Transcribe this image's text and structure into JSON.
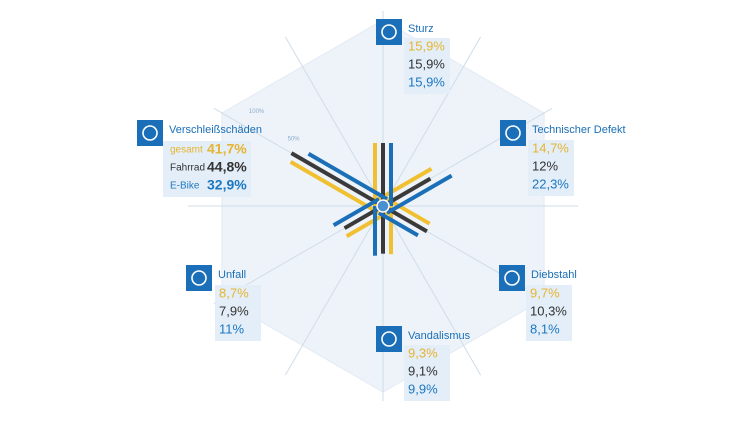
{
  "chart_data": {
    "type": "radial-bar",
    "categories": [
      "Sturz",
      "Technischer Defekt",
      "Diebstahl",
      "Vandalismus",
      "Unfall",
      "Verschleißschäden"
    ],
    "series": [
      {
        "name": "gesamt",
        "color": "#f0c030",
        "values": [
          15.9,
          14.7,
          9.7,
          9.3,
          8.7,
          41.7
        ],
        "value_labels": [
          "15,9%",
          "14,7%",
          "9,7%",
          "9,3%",
          "8,7%",
          "41,7%"
        ]
      },
      {
        "name": "Fahrrad",
        "color": "#3a3a3a",
        "values": [
          15.9,
          12,
          10.3,
          9.1,
          7.9,
          44.8
        ],
        "value_labels": [
          "15,9%",
          "12%",
          "10,3%",
          "9,1%",
          "7,9%",
          "44,8%"
        ]
      },
      {
        "name": "E-Bike",
        "color": "#1a6fb8",
        "values": [
          15.9,
          22.3,
          8.1,
          9.9,
          11,
          32.9
        ],
        "value_labels": [
          "15,9%",
          "22,3%",
          "8,1%",
          "9,9%",
          "11%",
          "32,9%"
        ]
      }
    ],
    "rlim": [
      0,
      100
    ],
    "rticks": [
      {
        "value": 100,
        "label": "100%"
      },
      {
        "value": 50,
        "label": "50%"
      }
    ],
    "scale": "sqrt"
  }
}
